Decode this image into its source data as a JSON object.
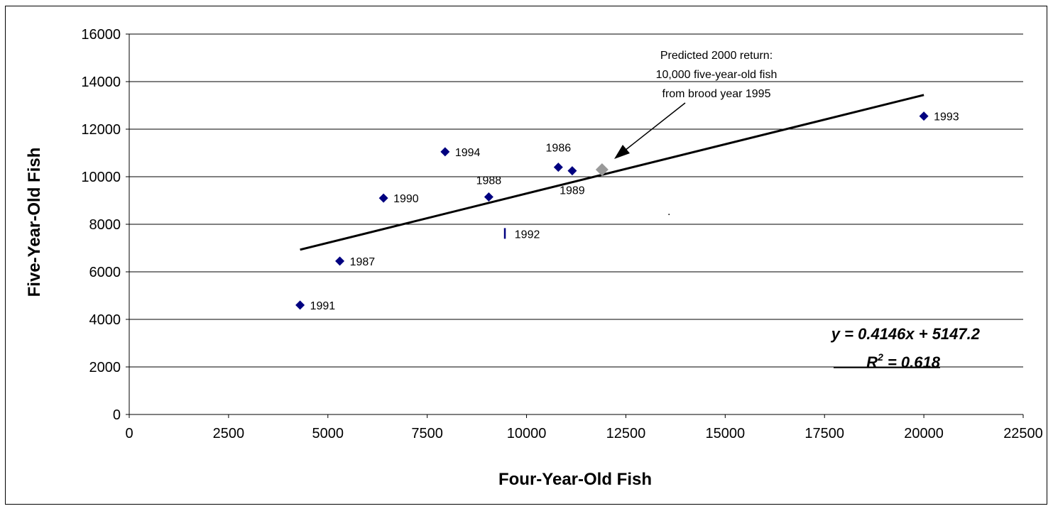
{
  "chart_data": {
    "type": "scatter",
    "title": "",
    "xlabel": "Four-Year-Old Fish",
    "ylabel": "Five-Year-Old Fish",
    "xlim": [
      0,
      22500
    ],
    "ylim": [
      0,
      16000
    ],
    "x_ticks": [
      "0",
      "2500",
      "5000",
      "7500",
      "10000",
      "12500",
      "15000",
      "17500",
      "20000",
      "22500"
    ],
    "y_ticks": [
      "0",
      "2000",
      "4000",
      "6000",
      "8000",
      "10000",
      "12000",
      "14000",
      "16000"
    ],
    "grid": "horizontal",
    "colors": {
      "points": "#000080",
      "predicted": "#999999",
      "trendline": "#000000",
      "gridline": "#000000"
    },
    "points": [
      {
        "label": "1986",
        "x": 10800,
        "y": 10400,
        "marker": "diamond"
      },
      {
        "label": "1987",
        "x": 5300,
        "y": 6450,
        "marker": "diamond"
      },
      {
        "label": "1988",
        "x": 9050,
        "y": 9150,
        "marker": "diamond"
      },
      {
        "label": "1989",
        "x": 11150,
        "y": 10250,
        "marker": "diamond"
      },
      {
        "label": "1990",
        "x": 6400,
        "y": 9100,
        "marker": "diamond"
      },
      {
        "label": "1991",
        "x": 4300,
        "y": 4600,
        "marker": "diamond"
      },
      {
        "label": "1992",
        "x": 9450,
        "y": 7600,
        "marker": "bar"
      },
      {
        "label": "1993",
        "x": 20000,
        "y": 12550,
        "marker": "diamond"
      },
      {
        "label": "1994",
        "x": 7950,
        "y": 11050,
        "marker": "diamond"
      }
    ],
    "predicted_point": {
      "x": 11900,
      "y": 10300
    },
    "trendline": {
      "x_start": 4300,
      "x_end": 20000,
      "slope": 0.4146,
      "intercept": 5147.2
    },
    "equation_text": "y = 0.4146x + 5147.2",
    "r2_label": "R",
    "r2_exponent": "2",
    "r2_value": " = 0.618",
    "annotation_lines": [
      "Predicted 2000 return:",
      "10,000 five-year-old fish",
      "from brood year 1995"
    ],
    "stray_mark": "."
  }
}
